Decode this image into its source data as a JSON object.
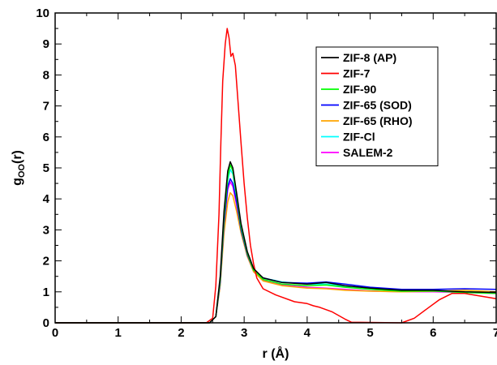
{
  "chart_data": {
    "type": "line",
    "xlabel": "r (Å)",
    "ylabel": {
      "main": "g",
      "sub": "OO",
      "suffix": "(r)"
    },
    "xlim": [
      0,
      7
    ],
    "ylim": [
      0,
      10
    ],
    "xticks": [
      0,
      1,
      2,
      3,
      4,
      5,
      6,
      7
    ],
    "yticks": [
      0,
      1,
      2,
      3,
      4,
      5,
      6,
      7,
      8,
      9,
      10
    ],
    "grid": false,
    "legend_position": "top-right",
    "series": [
      {
        "name": "ZIF-8 (AP)",
        "color": "#000000",
        "points": [
          [
            0,
            0
          ],
          [
            2.45,
            0
          ],
          [
            2.55,
            0.2
          ],
          [
            2.62,
            1.5
          ],
          [
            2.68,
            3.6
          ],
          [
            2.74,
            4.9
          ],
          [
            2.78,
            5.2
          ],
          [
            2.82,
            5.0
          ],
          [
            2.88,
            4.2
          ],
          [
            2.95,
            3.2
          ],
          [
            3.05,
            2.3
          ],
          [
            3.15,
            1.75
          ],
          [
            3.3,
            1.45
          ],
          [
            3.6,
            1.3
          ],
          [
            4.0,
            1.25
          ],
          [
            4.3,
            1.3
          ],
          [
            4.6,
            1.2
          ],
          [
            5.0,
            1.12
          ],
          [
            5.5,
            1.05
          ],
          [
            6.0,
            1.05
          ],
          [
            6.5,
            1.0
          ],
          [
            7.0,
            0.98
          ]
        ]
      },
      {
        "name": "ZIF-7",
        "color": "#ff0000",
        "points": [
          [
            0,
            0
          ],
          [
            2.4,
            0
          ],
          [
            2.5,
            0.15
          ],
          [
            2.55,
            1.2
          ],
          [
            2.6,
            3.5
          ],
          [
            2.63,
            5.8
          ],
          [
            2.66,
            7.8
          ],
          [
            2.7,
            9.0
          ],
          [
            2.73,
            9.5
          ],
          [
            2.76,
            9.2
          ],
          [
            2.79,
            8.6
          ],
          [
            2.82,
            8.7
          ],
          [
            2.86,
            8.3
          ],
          [
            2.9,
            7.2
          ],
          [
            2.95,
            5.8
          ],
          [
            3.0,
            4.5
          ],
          [
            3.05,
            3.4
          ],
          [
            3.1,
            2.5
          ],
          [
            3.15,
            1.9
          ],
          [
            3.2,
            1.45
          ],
          [
            3.3,
            1.1
          ],
          [
            3.5,
            0.9
          ],
          [
            3.8,
            0.68
          ],
          [
            4.0,
            0.62
          ],
          [
            4.1,
            0.55
          ],
          [
            4.2,
            0.5
          ],
          [
            4.4,
            0.35
          ],
          [
            4.6,
            0.12
          ],
          [
            4.7,
            0.02
          ],
          [
            5.5,
            0
          ],
          [
            5.7,
            0.15
          ],
          [
            5.9,
            0.45
          ],
          [
            6.1,
            0.75
          ],
          [
            6.3,
            0.95
          ],
          [
            6.5,
            0.95
          ],
          [
            6.7,
            0.88
          ],
          [
            7.0,
            0.78
          ]
        ]
      },
      {
        "name": "ZIF-90",
        "color": "#00ff00",
        "points": [
          [
            0,
            0
          ],
          [
            2.45,
            0
          ],
          [
            2.55,
            0.2
          ],
          [
            2.62,
            1.4
          ],
          [
            2.68,
            3.4
          ],
          [
            2.74,
            4.7
          ],
          [
            2.78,
            5.1
          ],
          [
            2.82,
            4.9
          ],
          [
            2.88,
            4.1
          ],
          [
            2.95,
            3.1
          ],
          [
            3.05,
            2.25
          ],
          [
            3.15,
            1.7
          ],
          [
            3.3,
            1.4
          ],
          [
            3.6,
            1.25
          ],
          [
            4.0,
            1.2
          ],
          [
            4.3,
            1.22
          ],
          [
            4.6,
            1.15
          ],
          [
            5.0,
            1.08
          ],
          [
            5.5,
            1.02
          ],
          [
            6.0,
            1.03
          ],
          [
            6.5,
            0.98
          ],
          [
            7.0,
            0.95
          ]
        ]
      },
      {
        "name": "ZIF-65 (SOD)",
        "color": "#0000ff",
        "points": [
          [
            0,
            0
          ],
          [
            2.45,
            0
          ],
          [
            2.55,
            0.2
          ],
          [
            2.62,
            1.3
          ],
          [
            2.68,
            3.2
          ],
          [
            2.74,
            4.4
          ],
          [
            2.78,
            4.65
          ],
          [
            2.82,
            4.5
          ],
          [
            2.88,
            3.9
          ],
          [
            2.95,
            3.0
          ],
          [
            3.05,
            2.2
          ],
          [
            3.15,
            1.7
          ],
          [
            3.3,
            1.45
          ],
          [
            3.6,
            1.3
          ],
          [
            4.0,
            1.28
          ],
          [
            4.3,
            1.32
          ],
          [
            4.6,
            1.25
          ],
          [
            5.0,
            1.15
          ],
          [
            5.5,
            1.08
          ],
          [
            6.0,
            1.08
          ],
          [
            6.5,
            1.1
          ],
          [
            7.0,
            1.08
          ]
        ]
      },
      {
        "name": "ZIF-65 (RHO)",
        "color": "#ffa500",
        "points": [
          [
            0,
            0
          ],
          [
            2.45,
            0
          ],
          [
            2.55,
            0.2
          ],
          [
            2.62,
            1.2
          ],
          [
            2.68,
            2.9
          ],
          [
            2.74,
            3.9
          ],
          [
            2.78,
            4.2
          ],
          [
            2.82,
            4.1
          ],
          [
            2.88,
            3.6
          ],
          [
            2.95,
            2.9
          ],
          [
            3.05,
            2.15
          ],
          [
            3.15,
            1.65
          ],
          [
            3.3,
            1.35
          ],
          [
            3.6,
            1.2
          ],
          [
            4.0,
            1.12
          ],
          [
            4.3,
            1.1
          ],
          [
            4.6,
            1.05
          ],
          [
            5.0,
            1.02
          ],
          [
            5.5,
            1.0
          ],
          [
            6.0,
            1.02
          ],
          [
            6.5,
            1.05
          ],
          [
            7.0,
            1.0
          ]
        ]
      },
      {
        "name": "ZIF-Cl",
        "color": "#00ffff",
        "points": [
          [
            0,
            0
          ],
          [
            2.45,
            0
          ],
          [
            2.55,
            0.2
          ],
          [
            2.62,
            1.3
          ],
          [
            2.68,
            3.3
          ],
          [
            2.74,
            4.6
          ],
          [
            2.78,
            4.95
          ],
          [
            2.82,
            4.8
          ],
          [
            2.88,
            4.05
          ],
          [
            2.95,
            3.1
          ],
          [
            3.05,
            2.25
          ],
          [
            3.15,
            1.72
          ],
          [
            3.3,
            1.45
          ],
          [
            3.6,
            1.32
          ],
          [
            4.0,
            1.25
          ],
          [
            4.3,
            1.25
          ],
          [
            4.6,
            1.18
          ],
          [
            5.0,
            1.12
          ],
          [
            5.5,
            1.05
          ],
          [
            6.0,
            1.05
          ],
          [
            6.5,
            1.0
          ],
          [
            7.0,
            0.97
          ]
        ]
      },
      {
        "name": "SALEM-2",
        "color": "#ff00ff",
        "points": [
          [
            0,
            0
          ],
          [
            2.45,
            0
          ],
          [
            2.55,
            0.2
          ],
          [
            2.62,
            1.25
          ],
          [
            2.68,
            3.1
          ],
          [
            2.74,
            4.3
          ],
          [
            2.78,
            4.55
          ],
          [
            2.82,
            4.4
          ],
          [
            2.88,
            3.8
          ],
          [
            2.95,
            2.95
          ],
          [
            3.05,
            2.15
          ],
          [
            3.15,
            1.65
          ],
          [
            3.3,
            1.38
          ],
          [
            3.6,
            1.22
          ],
          [
            4.0,
            1.15
          ],
          [
            4.3,
            1.12
          ],
          [
            4.6,
            1.08
          ],
          [
            5.0,
            1.03
          ],
          [
            5.5,
            1.0
          ],
          [
            6.0,
            1.0
          ],
          [
            6.5,
            0.98
          ],
          [
            7.0,
            0.95
          ]
        ]
      }
    ]
  }
}
